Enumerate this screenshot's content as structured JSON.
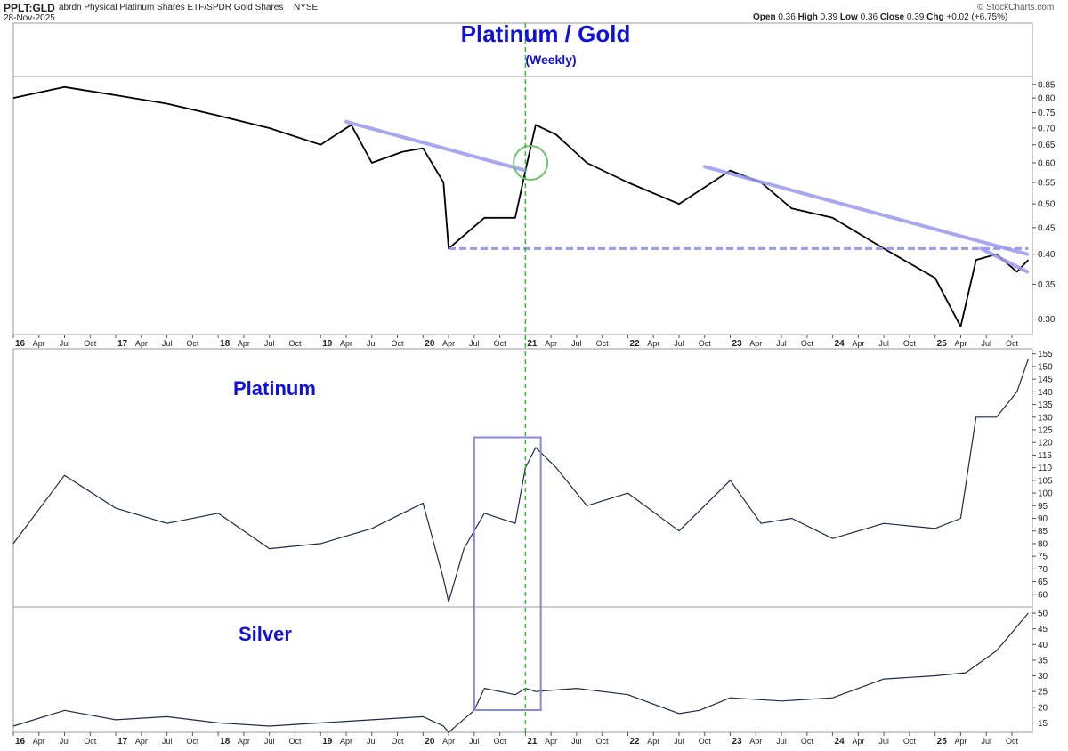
{
  "header": {
    "symbol": "PPLT:GLD",
    "description": "abrdn Physical Platinum Shares ETF/SPDR Gold Shares",
    "exchange": "NYSE",
    "date": "28-Nov-2025",
    "open_label": "Open",
    "open": "0.36",
    "high_label": "High",
    "high": "0.39",
    "low_label": "Low",
    "low": "0.36",
    "close_label": "Close",
    "close": "0.39",
    "chg_label": "Chg",
    "chg": "+0.02 (+6.75%)",
    "brand": "© StockCharts.com"
  },
  "colors": {
    "line": "#000000",
    "series": "#1f2a44",
    "trend": "#9a9aee",
    "box": "#8888dd",
    "vline": "#3db33d",
    "label": "#1010dd"
  },
  "chart_data": [
    {
      "type": "line",
      "title": "Platinum / Gold",
      "subtitle": "(Weekly)",
      "scale": "log",
      "ylim": [
        0.28,
        0.88
      ],
      "y_ticks": [
        0.3,
        0.35,
        0.4,
        0.45,
        0.5,
        0.55,
        0.6,
        0.65,
        0.7,
        0.75,
        0.8,
        0.85
      ],
      "x_labels": [
        "16",
        "Apr",
        "Jul",
        "Oct",
        "17",
        "Apr",
        "Jul",
        "Oct",
        "18",
        "Apr",
        "Jul",
        "Oct",
        "19",
        "Apr",
        "Jul",
        "Oct",
        "20",
        "Apr",
        "Jul",
        "Oct",
        "21",
        "Apr",
        "Jul",
        "Oct",
        "22",
        "Apr",
        "Jul",
        "Oct",
        "23",
        "Apr",
        "Jul",
        "Oct",
        "24",
        "Apr",
        "Jul",
        "Oct",
        "25",
        "Apr",
        "Jul",
        "Oct"
      ],
      "x": [
        2016.0,
        2016.5,
        2017.0,
        2017.5,
        2018.0,
        2018.5,
        2019.0,
        2019.3,
        2019.5,
        2019.8,
        2020.0,
        2020.2,
        2020.25,
        2020.6,
        2020.9,
        2021.0,
        2021.1,
        2021.3,
        2021.6,
        2022.0,
        2022.5,
        2023.0,
        2023.3,
        2023.6,
        2024.0,
        2024.5,
        2025.0,
        2025.25,
        2025.4,
        2025.6,
        2025.8,
        2025.91
      ],
      "y": [
        0.8,
        0.84,
        0.81,
        0.78,
        0.74,
        0.7,
        0.65,
        0.71,
        0.6,
        0.63,
        0.64,
        0.55,
        0.41,
        0.47,
        0.47,
        0.58,
        0.71,
        0.68,
        0.6,
        0.55,
        0.5,
        0.58,
        0.55,
        0.49,
        0.47,
        0.41,
        0.36,
        0.29,
        0.39,
        0.4,
        0.37,
        0.39
      ],
      "annotations": {
        "trendline_1": {
          "from": [
            2019.25,
            0.72
          ],
          "to": [
            2021.0,
            0.58
          ]
        },
        "trendline_2": {
          "from": [
            2022.75,
            0.59
          ],
          "to": [
            2025.9,
            0.4
          ]
        },
        "trendline_3": {
          "from": [
            2025.45,
            0.41
          ],
          "to": [
            2025.9,
            0.37
          ]
        },
        "support_dashed": {
          "y": 0.41,
          "x_from": 2020.25,
          "x_to": 2025.91
        },
        "circle_at": [
          2021.05,
          0.6
        ],
        "vertical_dashed_at": 2021.0
      }
    },
    {
      "type": "line",
      "title": "Platinum",
      "ylim": [
        55,
        157
      ],
      "y_ticks": [
        60,
        65,
        70,
        75,
        80,
        85,
        90,
        95,
        100,
        105,
        110,
        115,
        120,
        125,
        130,
        135,
        140,
        145,
        150,
        155
      ],
      "x": [
        2016.0,
        2016.5,
        2017.0,
        2017.5,
        2018.0,
        2018.5,
        2019.0,
        2019.5,
        2020.0,
        2020.2,
        2020.25,
        2020.4,
        2020.6,
        2020.9,
        2021.0,
        2021.1,
        2021.3,
        2021.6,
        2022.0,
        2022.5,
        2023.0,
        2023.3,
        2023.6,
        2024.0,
        2024.5,
        2025.0,
        2025.25,
        2025.4,
        2025.6,
        2025.8,
        2025.91
      ],
      "y": [
        80,
        107,
        94,
        88,
        92,
        78,
        80,
        86,
        96,
        66,
        57,
        78,
        92,
        88,
        110,
        118,
        110,
        95,
        100,
        85,
        105,
        88,
        90,
        82,
        88,
        86,
        90,
        130,
        130,
        140,
        153
      ],
      "box": {
        "x_from": 2020.5,
        "x_to": 2021.15,
        "y_from": 55,
        "y_to": 122
      },
      "vertical_dashed_at": 2021.0
    },
    {
      "type": "line",
      "title": "Silver",
      "ylim": [
        12,
        52
      ],
      "y_ticks": [
        15,
        20,
        25,
        30,
        35,
        40,
        45,
        50
      ],
      "x_labels": [
        "16",
        "Apr",
        "Jul",
        "Oct",
        "17",
        "Apr",
        "Jul",
        "Oct",
        "18",
        "Apr",
        "Jul",
        "Oct",
        "19",
        "Apr",
        "Jul",
        "Oct",
        "20",
        "Apr",
        "Jul",
        "Oct",
        "21",
        "Apr",
        "Jul",
        "Oct",
        "22",
        "Apr",
        "Jul",
        "Oct",
        "23",
        "Apr",
        "Jul",
        "Oct",
        "24",
        "Apr",
        "Jul",
        "Oct",
        "25",
        "Apr",
        "Jul",
        "Oct"
      ],
      "x": [
        2016.0,
        2016.5,
        2017.0,
        2017.5,
        2018.0,
        2018.5,
        2019.0,
        2019.5,
        2020.0,
        2020.2,
        2020.25,
        2020.5,
        2020.6,
        2020.9,
        2021.0,
        2021.1,
        2021.5,
        2022.0,
        2022.5,
        2022.7,
        2023.0,
        2023.5,
        2024.0,
        2024.5,
        2025.0,
        2025.3,
        2025.6,
        2025.91
      ],
      "y": [
        14,
        19,
        16,
        17,
        15,
        14,
        15,
        16,
        17,
        14,
        12,
        19,
        26,
        24,
        26,
        25,
        26,
        24,
        18,
        19,
        23,
        22,
        23,
        29,
        30,
        31,
        38,
        50
      ],
      "vertical_dashed_at": 2021.0
    }
  ]
}
